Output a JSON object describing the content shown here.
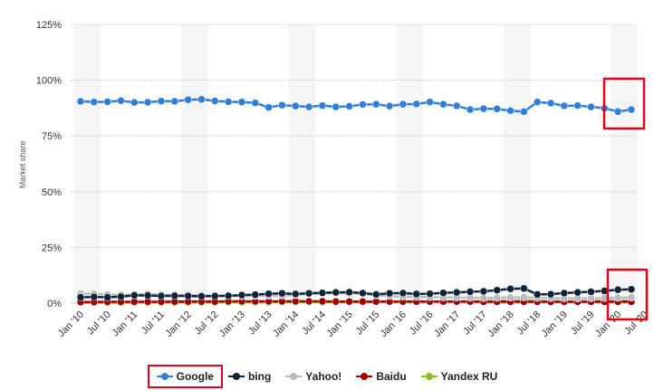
{
  "chart_data": {
    "type": "line",
    "title": "",
    "xlabel": "",
    "ylabel": "Market share",
    "ylim": [
      0,
      125
    ],
    "y_ticks": [
      "0%",
      "25%",
      "50%",
      "75%",
      "100%",
      "125%"
    ],
    "y_tick_values": [
      0,
      25,
      50,
      75,
      100,
      125
    ],
    "x_tick_labels": [
      "Jan '10",
      "Jul '10",
      "Jan '11",
      "Jul '11",
      "Jan '12",
      "Jul '12",
      "Jan '13",
      "Jul '13",
      "Jan '14",
      "Jul '14",
      "Jan '15",
      "Jul '15",
      "Jan '16",
      "Jul '16",
      "Jan '17",
      "Jul '17",
      "Jan '18",
      "Jul '18",
      "Jan '19",
      "Jul '19",
      "Jan '20",
      "Jul '20"
    ],
    "grid": true,
    "legend_position": "bottom",
    "series": [
      {
        "name": "Google",
        "color": "#2f7ed8",
        "values": [
          90.5,
          90.2,
          90.3,
          90.8,
          90,
          90.1,
          90.6,
          90.5,
          91.2,
          91.4,
          90.7,
          90.3,
          90.2,
          89.8,
          87.8,
          88.8,
          88.4,
          88,
          88.6,
          88,
          88.3,
          89.1,
          89.2,
          88.4,
          89.2,
          89.3,
          90.2,
          89.2,
          88.5,
          86.8,
          87.2,
          87.1,
          86.3,
          85.9,
          90.2,
          89.7,
          88.5,
          88.6,
          88,
          87.4,
          85.9,
          86.8
        ]
      },
      {
        "name": "bing",
        "color": "#0d233a",
        "values": [
          2.6,
          2.8,
          2.6,
          2.9,
          3.5,
          3.4,
          3.2,
          3.3,
          3.2,
          3.1,
          3.2,
          3.3,
          3.6,
          3.8,
          4.2,
          4.4,
          4.1,
          4.4,
          4.6,
          4.8,
          4.9,
          4.5,
          3.9,
          4.4,
          4.5,
          4.1,
          4.2,
          4.6,
          4.8,
          5.1,
          5.3,
          5.8,
          6.4,
          6.6,
          3.9,
          4.0,
          4.5,
          4.8,
          5.1,
          5.5,
          6.0,
          6.2
        ]
      },
      {
        "name": "Yahoo!",
        "color": "#bbbbbb",
        "values": [
          4.3,
          4.1,
          3.9,
          3.7,
          3.9,
          4.1,
          3.8,
          3.7,
          3.6,
          3.4,
          3.3,
          3.2,
          3.1,
          3.2,
          3.3,
          3.4,
          3.6,
          4.2,
          4.5,
          4.6,
          4.4,
          4.2,
          3.5,
          3.2,
          2.9,
          2.8,
          2.7,
          2.6,
          2.5,
          2.4,
          2.3,
          2.4,
          2.5,
          2.6,
          2.4,
          2.3,
          2.2,
          2.1,
          2.2,
          2.3,
          2.4,
          2.5
        ]
      },
      {
        "name": "Baidu",
        "color": "#a00000",
        "values": [
          0.5,
          0.5,
          0.6,
          0.6,
          0.6,
          0.6,
          0.6,
          0.7,
          0.7,
          0.7,
          0.7,
          0.8,
          0.8,
          0.8,
          0.8,
          0.8,
          0.8,
          0.8,
          0.8,
          0.7,
          0.7,
          0.7,
          0.7,
          0.7,
          0.7,
          0.7,
          0.7,
          0.7,
          0.7,
          0.7,
          0.6,
          0.6,
          0.6,
          0.6,
          0.6,
          0.6,
          0.6,
          0.6,
          0.6,
          0.6,
          0.6,
          0.6
        ]
      },
      {
        "name": "Yandex RU",
        "color": "#8bbc21",
        "values": [
          0.2,
          0.2,
          0.2,
          0.2,
          0.3,
          0.3,
          0.3,
          0.3,
          0.3,
          0.3,
          0.3,
          0.4,
          0.4,
          0.4,
          0.4,
          0.5,
          0.5,
          0.5,
          0.5,
          0.5,
          0.5,
          0.5,
          0.6,
          0.6,
          0.6,
          0.6,
          0.7,
          0.7,
          0.7,
          0.8,
          0.9,
          1.0,
          1.1,
          1.2,
          1.0,
          0.9,
          0.8,
          0.8,
          0.9,
          1.0,
          1.0,
          1.1
        ]
      }
    ],
    "highlighted_legend": "Google",
    "highlight_color": "#e3001b"
  }
}
